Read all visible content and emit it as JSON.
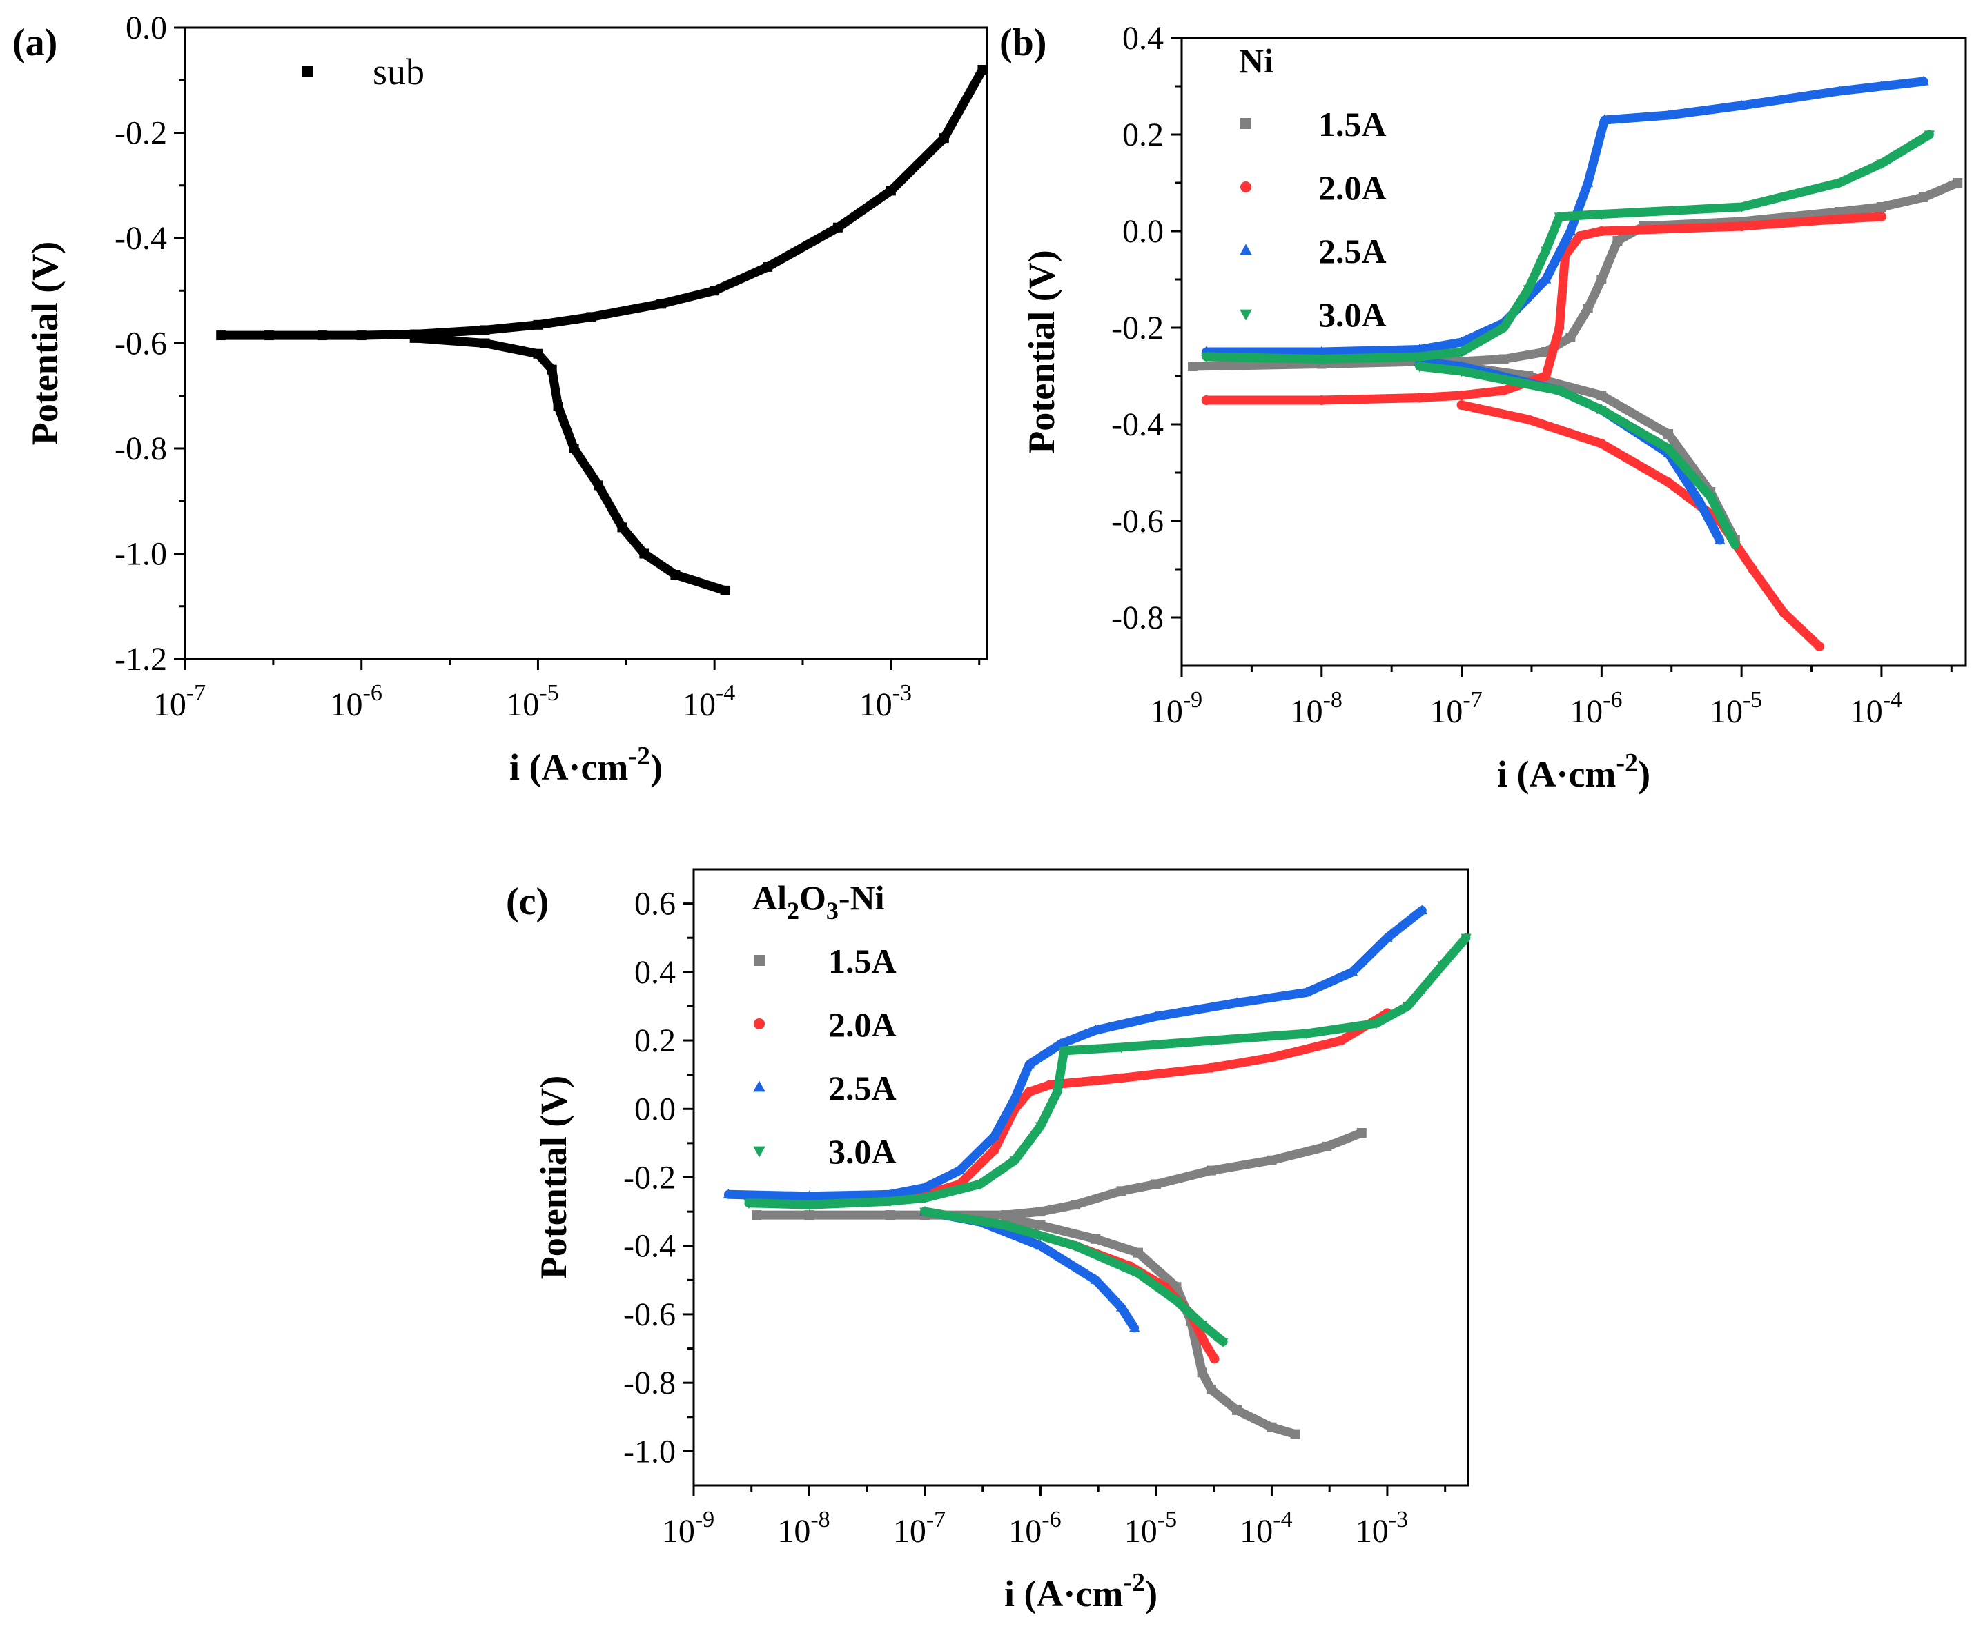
{
  "chart_data": [
    {
      "panel_label": "(a)",
      "type": "scatter",
      "x_scale": "log",
      "xlim": [
        1e-07,
        0.0035
      ],
      "ylim": [
        -1.2,
        0.0
      ],
      "xlabel": "i (A·cm",
      "xlabel_sup": "-2",
      "xlabel_close": ")",
      "ylabel": "Potential (V)",
      "x_tick_labels": [
        {
          "base": "10",
          "exp": "-7",
          "value": 1e-07
        },
        {
          "base": "10",
          "exp": "-6",
          "value": 1e-06
        },
        {
          "base": "10",
          "exp": "-5",
          "value": 1e-05
        },
        {
          "base": "10",
          "exp": "-4",
          "value": 0.0001
        },
        {
          "base": "10",
          "exp": "-3",
          "value": 0.001
        }
      ],
      "y_ticks": [
        0.0,
        -0.2,
        -0.4,
        -0.6,
        -0.8,
        -1.0,
        -1.2
      ],
      "y_tick_labels": [
        "0.0",
        "-0.2",
        "-0.4",
        "-0.6",
        "-0.8",
        "-1.0",
        "-1.2"
      ],
      "legend_title": "",
      "legend_position": "top-left",
      "series": [
        {
          "name": "sub",
          "color": "#000000",
          "marker": "square",
          "anodic": [
            [
              1.6e-07,
              -0.585
            ],
            [
              3e-07,
              -0.585
            ],
            [
              6e-07,
              -0.585
            ],
            [
              1e-06,
              -0.585
            ],
            [
              2e-06,
              -0.583
            ],
            [
              5e-06,
              -0.575
            ],
            [
              1e-05,
              -0.565
            ],
            [
              2e-05,
              -0.55
            ],
            [
              5e-05,
              -0.525
            ],
            [
              0.0001,
              -0.5
            ],
            [
              0.0002,
              -0.455
            ],
            [
              0.0005,
              -0.38
            ],
            [
              0.001,
              -0.31
            ],
            [
              0.002,
              -0.21
            ],
            [
              0.0033,
              -0.08
            ]
          ],
          "cathodic": [
            [
              2e-06,
              -0.59
            ],
            [
              5e-06,
              -0.6
            ],
            [
              1e-05,
              -0.62
            ],
            [
              1.2e-05,
              -0.65
            ],
            [
              1.3e-05,
              -0.72
            ],
            [
              1.6e-05,
              -0.8
            ],
            [
              2.2e-05,
              -0.87
            ],
            [
              3e-05,
              -0.95
            ],
            [
              4e-05,
              -1.0
            ],
            [
              6e-05,
              -1.04
            ],
            [
              0.000115,
              -1.07
            ]
          ]
        }
      ]
    },
    {
      "panel_label": "(b)",
      "type": "scatter",
      "x_scale": "log",
      "xlim": [
        1e-09,
        0.0004
      ],
      "ylim": [
        -0.9,
        0.4
      ],
      "xlabel": "i (A·cm",
      "xlabel_sup": "-2",
      "xlabel_close": ")",
      "ylabel": "Potential (V)",
      "x_tick_labels": [
        {
          "base": "10",
          "exp": "-9",
          "value": 1e-09
        },
        {
          "base": "10",
          "exp": "-8",
          "value": 1e-08
        },
        {
          "base": "10",
          "exp": "-7",
          "value": 1e-07
        },
        {
          "base": "10",
          "exp": "-6",
          "value": 1e-06
        },
        {
          "base": "10",
          "exp": "-5",
          "value": 1e-05
        },
        {
          "base": "10",
          "exp": "-4",
          "value": 0.0001
        }
      ],
      "y_ticks": [
        0.4,
        0.2,
        0.0,
        -0.2,
        -0.4,
        -0.6,
        -0.8
      ],
      "y_tick_labels": [
        "0.4",
        "0.2",
        "0.0",
        "-0.2",
        "-0.4",
        "-0.6",
        "-0.8"
      ],
      "legend_title": "Ni",
      "legend_position": "top-left",
      "series": [
        {
          "name": "1.5A",
          "color": "#808080",
          "marker": "square",
          "anodic": [
            [
              1.2e-09,
              -0.28
            ],
            [
              1e-08,
              -0.275
            ],
            [
              5e-08,
              -0.27
            ],
            [
              1e-07,
              -0.27
            ],
            [
              2e-07,
              -0.265
            ],
            [
              4e-07,
              -0.25
            ],
            [
              6e-07,
              -0.22
            ],
            [
              8e-07,
              -0.16
            ],
            [
              1e-06,
              -0.1
            ],
            [
              1.3e-06,
              -0.02
            ],
            [
              2e-06,
              0.01
            ],
            [
              1e-05,
              0.02
            ],
            [
              5e-05,
              0.04
            ],
            [
              0.0001,
              0.05
            ],
            [
              0.0002,
              0.07
            ],
            [
              0.00035,
              0.1
            ]
          ],
          "cathodic": [
            [
              1e-07,
              -0.28
            ],
            [
              3e-07,
              -0.3
            ],
            [
              1e-06,
              -0.34
            ],
            [
              3e-06,
              -0.42
            ],
            [
              6e-06,
              -0.54
            ],
            [
              9e-06,
              -0.64
            ]
          ]
        },
        {
          "name": "2.0A",
          "color": "#ff3333",
          "marker": "circle",
          "anodic": [
            [
              1.5e-09,
              -0.35
            ],
            [
              1e-08,
              -0.35
            ],
            [
              5e-08,
              -0.345
            ],
            [
              1e-07,
              -0.34
            ],
            [
              2e-07,
              -0.33
            ],
            [
              4e-07,
              -0.3
            ],
            [
              5e-07,
              -0.2
            ],
            [
              5.5e-07,
              -0.05
            ],
            [
              7e-07,
              -0.01
            ],
            [
              1e-06,
              0.0
            ],
            [
              1e-05,
              0.01
            ],
            [
              5e-05,
              0.025
            ],
            [
              0.0001,
              0.03
            ]
          ],
          "cathodic": [
            [
              1e-07,
              -0.36
            ],
            [
              3e-07,
              -0.39
            ],
            [
              1e-06,
              -0.44
            ],
            [
              3e-06,
              -0.52
            ],
            [
              7e-06,
              -0.6
            ],
            [
              1.2e-05,
              -0.7
            ],
            [
              2e-05,
              -0.79
            ],
            [
              3.6e-05,
              -0.86
            ]
          ]
        },
        {
          "name": "2.5A",
          "color": "#1a66e6",
          "marker": "triangle-up",
          "anodic": [
            [
              1.5e-09,
              -0.25
            ],
            [
              1e-08,
              -0.25
            ],
            [
              5e-08,
              -0.245
            ],
            [
              1e-07,
              -0.23
            ],
            [
              2e-07,
              -0.19
            ],
            [
              4e-07,
              -0.1
            ],
            [
              6e-07,
              0.0
            ],
            [
              8e-07,
              0.1
            ],
            [
              1.05e-06,
              0.23
            ],
            [
              3e-06,
              0.24
            ],
            [
              1e-05,
              0.26
            ],
            [
              5e-05,
              0.29
            ],
            [
              0.0001,
              0.3
            ],
            [
              0.0002,
              0.31
            ]
          ],
          "cathodic": [
            [
              5e-08,
              -0.27
            ],
            [
              1e-07,
              -0.28
            ],
            [
              5e-07,
              -0.33
            ],
            [
              1e-06,
              -0.37
            ],
            [
              3e-06,
              -0.46
            ],
            [
              5e-06,
              -0.56
            ],
            [
              7e-06,
              -0.64
            ]
          ]
        },
        {
          "name": "3.0A",
          "color": "#1aa860",
          "marker": "triangle-down",
          "anodic": [
            [
              1.5e-09,
              -0.26
            ],
            [
              1e-08,
              -0.265
            ],
            [
              5e-08,
              -0.26
            ],
            [
              1e-07,
              -0.25
            ],
            [
              2e-07,
              -0.2
            ],
            [
              3e-07,
              -0.12
            ],
            [
              4e-07,
              -0.04
            ],
            [
              5e-07,
              0.03
            ],
            [
              1e-06,
              0.035
            ],
            [
              1e-05,
              0.05
            ],
            [
              5e-05,
              0.1
            ],
            [
              0.0001,
              0.14
            ],
            [
              0.00022,
              0.2
            ]
          ],
          "cathodic": [
            [
              5e-08,
              -0.28
            ],
            [
              1e-07,
              -0.29
            ],
            [
              5e-07,
              -0.33
            ],
            [
              1e-06,
              -0.37
            ],
            [
              3e-06,
              -0.45
            ],
            [
              6e-06,
              -0.55
            ],
            [
              9e-06,
              -0.65
            ]
          ]
        }
      ]
    },
    {
      "panel_label": "(c)",
      "type": "scatter",
      "x_scale": "log",
      "xlim": [
        1e-09,
        0.005
      ],
      "ylim": [
        -1.1,
        0.7
      ],
      "xlabel": "i (A·cm",
      "xlabel_sup": "-2",
      "xlabel_close": ")",
      "ylabel": "Potential (V)",
      "x_tick_labels": [
        {
          "base": "10",
          "exp": "-9",
          "value": 1e-09
        },
        {
          "base": "10",
          "exp": "-8",
          "value": 1e-08
        },
        {
          "base": "10",
          "exp": "-7",
          "value": 1e-07
        },
        {
          "base": "10",
          "exp": "-6",
          "value": 1e-06
        },
        {
          "base": "10",
          "exp": "-5",
          "value": 1e-05
        },
        {
          "base": "10",
          "exp": "-4",
          "value": 0.0001
        },
        {
          "base": "10",
          "exp": "-3",
          "value": 0.001
        }
      ],
      "y_ticks": [
        0.6,
        0.4,
        0.2,
        0.0,
        -0.2,
        -0.4,
        -0.6,
        -0.8,
        -1.0
      ],
      "y_tick_labels": [
        "0.6",
        "0.4",
        "0.2",
        "0.0",
        "-0.2",
        "-0.4",
        "-0.6",
        "-0.8",
        "-1.0"
      ],
      "legend_title": "Al",
      "legend_title_sub1": "2",
      "legend_title_mid": "O",
      "legend_title_sub2": "3",
      "legend_title_end": "-Ni",
      "legend_position": "top-left",
      "series": [
        {
          "name": "1.5A",
          "color": "#808080",
          "marker": "square",
          "anodic": [
            [
              3.5e-09,
              -0.31
            ],
            [
              1e-08,
              -0.31
            ],
            [
              5e-08,
              -0.31
            ],
            [
              1e-07,
              -0.31
            ],
            [
              5e-07,
              -0.31
            ],
            [
              1e-06,
              -0.3
            ],
            [
              2e-06,
              -0.28
            ],
            [
              5e-06,
              -0.24
            ],
            [
              1e-05,
              -0.22
            ],
            [
              3e-05,
              -0.18
            ],
            [
              0.0001,
              -0.15
            ],
            [
              0.0003,
              -0.11
            ],
            [
              0.0006,
              -0.07
            ]
          ],
          "cathodic": [
            [
              5e-07,
              -0.32
            ],
            [
              1e-06,
              -0.34
            ],
            [
              3e-06,
              -0.38
            ],
            [
              7e-06,
              -0.42
            ],
            [
              1.5e-05,
              -0.52
            ],
            [
              2e-05,
              -0.62
            ],
            [
              2.5e-05,
              -0.77
            ],
            [
              3e-05,
              -0.82
            ],
            [
              5e-05,
              -0.88
            ],
            [
              0.0001,
              -0.93
            ],
            [
              0.00016,
              -0.95
            ]
          ]
        },
        {
          "name": "2.0A",
          "color": "#ff3333",
          "marker": "circle",
          "anodic": [
            [
              3.5e-09,
              -0.265
            ],
            [
              1e-08,
              -0.265
            ],
            [
              5e-08,
              -0.26
            ],
            [
              1e-07,
              -0.25
            ],
            [
              2e-07,
              -0.22
            ],
            [
              4e-07,
              -0.12
            ],
            [
              6e-07,
              0.0
            ],
            [
              8e-07,
              0.05
            ],
            [
              1.2e-06,
              0.07
            ],
            [
              5e-06,
              0.09
            ],
            [
              3e-05,
              0.12
            ],
            [
              0.0001,
              0.15
            ],
            [
              0.0004,
              0.2
            ],
            [
              0.001,
              0.28
            ]
          ],
          "cathodic": [
            [
              1e-07,
              -0.3
            ],
            [
              5e-07,
              -0.34
            ],
            [
              2e-06,
              -0.4
            ],
            [
              6e-06,
              -0.46
            ],
            [
              1.2e-05,
              -0.52
            ],
            [
              2e-05,
              -0.6
            ],
            [
              2.6e-05,
              -0.68
            ],
            [
              3.2e-05,
              -0.73
            ]
          ]
        },
        {
          "name": "2.5A",
          "color": "#1a66e6",
          "marker": "triangle-up",
          "anodic": [
            [
              2e-09,
              -0.25
            ],
            [
              1e-08,
              -0.255
            ],
            [
              5e-08,
              -0.25
            ],
            [
              1e-07,
              -0.23
            ],
            [
              2e-07,
              -0.18
            ],
            [
              4e-07,
              -0.08
            ],
            [
              6e-07,
              0.03
            ],
            [
              8e-07,
              0.13
            ],
            [
              1.5e-06,
              0.19
            ],
            [
              3e-06,
              0.23
            ],
            [
              1e-05,
              0.27
            ],
            [
              5e-05,
              0.31
            ],
            [
              0.0002,
              0.34
            ],
            [
              0.0005,
              0.4
            ],
            [
              0.001,
              0.5
            ],
            [
              0.002,
              0.58
            ]
          ],
          "cathodic": [
            [
              1e-07,
              -0.3
            ],
            [
              3e-07,
              -0.33
            ],
            [
              1e-06,
              -0.4
            ],
            [
              3e-06,
              -0.5
            ],
            [
              5e-06,
              -0.58
            ],
            [
              6.5e-06,
              -0.64
            ]
          ]
        },
        {
          "name": "3.0A",
          "color": "#1aa860",
          "marker": "triangle-down",
          "anodic": [
            [
              3e-09,
              -0.275
            ],
            [
              1e-08,
              -0.28
            ],
            [
              5e-08,
              -0.27
            ],
            [
              1e-07,
              -0.26
            ],
            [
              3e-07,
              -0.22
            ],
            [
              6e-07,
              -0.15
            ],
            [
              1e-06,
              -0.05
            ],
            [
              1.4e-06,
              0.05
            ],
            [
              1.6e-06,
              0.17
            ],
            [
              5e-06,
              0.18
            ],
            [
              3e-05,
              0.2
            ],
            [
              0.0002,
              0.22
            ],
            [
              0.0008,
              0.25
            ],
            [
              0.0015,
              0.3
            ],
            [
              0.003,
              0.42
            ],
            [
              0.0048,
              0.5
            ]
          ],
          "cathodic": [
            [
              1e-07,
              -0.3
            ],
            [
              5e-07,
              -0.34
            ],
            [
              2e-06,
              -0.4
            ],
            [
              7e-06,
              -0.48
            ],
            [
              1.5e-05,
              -0.56
            ],
            [
              2.5e-05,
              -0.63
            ],
            [
              3.8e-05,
              -0.68
            ]
          ]
        }
      ]
    }
  ]
}
